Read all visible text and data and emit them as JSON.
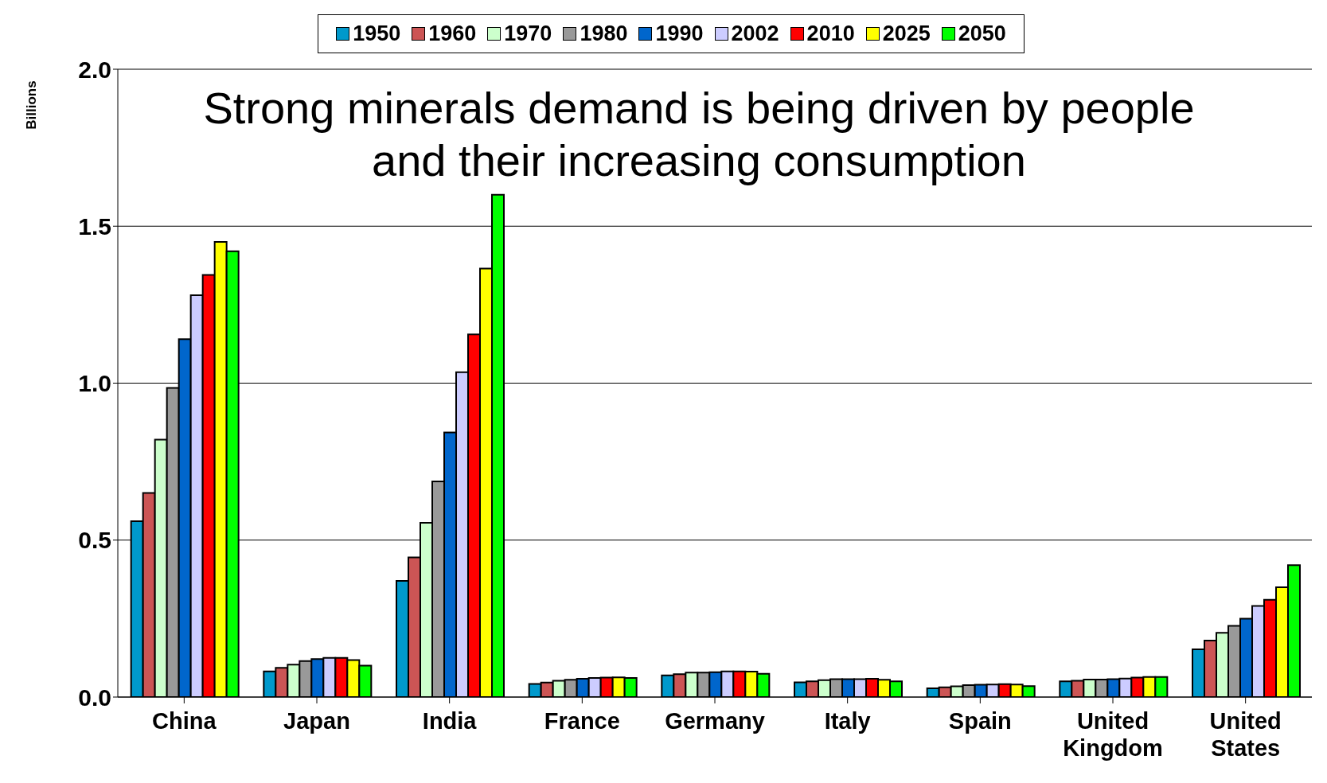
{
  "chart_data": {
    "type": "bar",
    "title": "Strong minerals demand is being driven by people and their increasing consumption",
    "ylabel": "Billions",
    "categories": [
      "China",
      "Japan",
      "India",
      "France",
      "Germany",
      "Italy",
      "Spain",
      "United Kingdom",
      "United States"
    ],
    "series": [
      {
        "name": "1950",
        "color": "#0099cc",
        "values": [
          0.56,
          0.082,
          0.37,
          0.042,
          0.069,
          0.047,
          0.028,
          0.05,
          0.152
        ]
      },
      {
        "name": "1960",
        "color": "#cc5555",
        "values": [
          0.65,
          0.093,
          0.445,
          0.046,
          0.073,
          0.05,
          0.031,
          0.052,
          0.18
        ]
      },
      {
        "name": "1970",
        "color": "#ccffcc",
        "values": [
          0.82,
          0.103,
          0.555,
          0.052,
          0.078,
          0.054,
          0.034,
          0.056,
          0.205
        ]
      },
      {
        "name": "1980",
        "color": "#999999",
        "values": [
          0.985,
          0.115,
          0.687,
          0.055,
          0.078,
          0.057,
          0.038,
          0.056,
          0.227
        ]
      },
      {
        "name": "1990",
        "color": "#0066cc",
        "values": [
          1.14,
          0.121,
          0.843,
          0.058,
          0.079,
          0.057,
          0.039,
          0.057,
          0.25
        ]
      },
      {
        "name": "2002",
        "color": "#ccccff",
        "values": [
          1.28,
          0.125,
          1.035,
          0.061,
          0.082,
          0.057,
          0.04,
          0.059,
          0.29
        ]
      },
      {
        "name": "2010",
        "color": "#ff0000",
        "values": [
          1.345,
          0.125,
          1.155,
          0.062,
          0.082,
          0.058,
          0.041,
          0.062,
          0.31
        ]
      },
      {
        "name": "2025",
        "color": "#ffff00",
        "values": [
          1.45,
          0.118,
          1.365,
          0.063,
          0.081,
          0.055,
          0.04,
          0.064,
          0.35
        ]
      },
      {
        "name": "2050",
        "color": "#00ff00",
        "values": [
          1.42,
          0.1,
          1.6,
          0.061,
          0.074,
          0.05,
          0.035,
          0.064,
          0.42
        ]
      }
    ],
    "ylim": [
      0,
      2.0
    ],
    "yticks": [
      {
        "value": 0,
        "label": "0.0"
      },
      {
        "value": 0.5,
        "label": "0.5"
      },
      {
        "value": 1,
        "label": "1.0"
      },
      {
        "value": 1.5,
        "label": "1.5"
      },
      {
        "value": 2,
        "label": "2.0"
      }
    ],
    "grid": "y",
    "legend": "top"
  }
}
